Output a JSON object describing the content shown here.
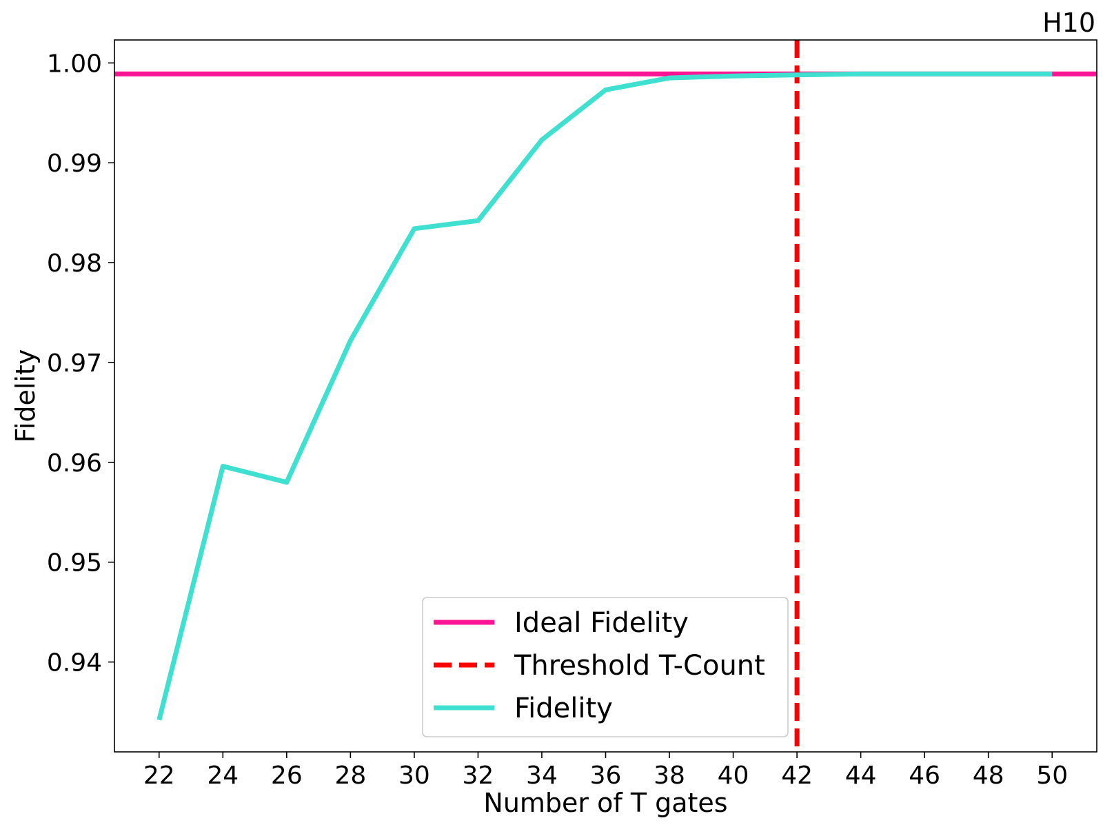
{
  "chart_data": {
    "type": "line",
    "title": "H10",
    "xlabel": "Number of T gates",
    "ylabel": "Fidelity",
    "xlim": [
      20.6,
      51.4
    ],
    "ylim": [
      0.931,
      1.0023
    ],
    "xticks": [
      22,
      24,
      26,
      28,
      30,
      32,
      34,
      36,
      38,
      40,
      42,
      44,
      46,
      48,
      50
    ],
    "yticks": [
      0.94,
      0.95,
      0.96,
      0.97,
      0.98,
      0.99,
      1.0
    ],
    "ytick_labels": [
      "0.94",
      "0.95",
      "0.96",
      "0.97",
      "0.98",
      "0.99",
      "1.00"
    ],
    "grid": false,
    "legend_position": "lower-center",
    "series": [
      {
        "name": "Fidelity",
        "color": "#40E0D0",
        "x": [
          22,
          24,
          26,
          28,
          30,
          32,
          34,
          36,
          38,
          40,
          42,
          44,
          46,
          48,
          50
        ],
        "y": [
          0.9342,
          0.9596,
          0.958,
          0.9722,
          0.9834,
          0.9842,
          0.9923,
          0.9973,
          0.9985,
          0.9987,
          0.9988,
          0.9989,
          0.9989,
          0.9989,
          0.9989
        ]
      }
    ],
    "reference_lines": [
      {
        "name": "Ideal Fidelity",
        "orientation": "horizontal",
        "value": 0.9989,
        "color": "#FF1493",
        "style": "solid"
      },
      {
        "name": "Threshold T-Count",
        "orientation": "vertical",
        "value": 42,
        "color": "#FF0000",
        "style": "dashed"
      }
    ],
    "legend": [
      {
        "label": "Ideal Fidelity",
        "color": "#FF1493",
        "style": "solid"
      },
      {
        "label": "Threshold T-Count",
        "color": "#FF0000",
        "style": "dashed"
      },
      {
        "label": "Fidelity",
        "color": "#40E0D0",
        "style": "solid"
      }
    ]
  }
}
